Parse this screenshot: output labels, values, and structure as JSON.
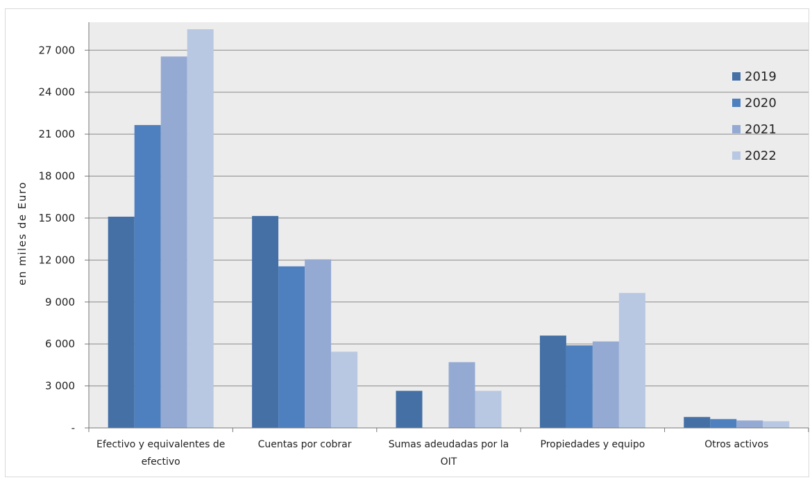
{
  "chart_data": {
    "type": "bar",
    "title": "",
    "xlabel": "",
    "ylabel": "en miles de Euro",
    "ylim": [
      0,
      29000
    ],
    "yticks": [
      {
        "value": 0,
        "label": "-"
      },
      {
        "value": 3000,
        "label": "3 000"
      },
      {
        "value": 6000,
        "label": "6 000"
      },
      {
        "value": 9000,
        "label": "9 000"
      },
      {
        "value": 12000,
        "label": "12 000"
      },
      {
        "value": 15000,
        "label": "15 000"
      },
      {
        "value": 18000,
        "label": "18 000"
      },
      {
        "value": 21000,
        "label": "21 000"
      },
      {
        "value": 24000,
        "label": "24 000"
      },
      {
        "value": 27000,
        "label": "27 000"
      }
    ],
    "categories": [
      [
        "Efectivo y equivalentes de",
        "efectivo"
      ],
      [
        "Cuentas por cobrar"
      ],
      [
        "Sumas adeudadas por la",
        "OIT"
      ],
      [
        "Propiedades y equipo"
      ],
      [
        "Otros activos"
      ]
    ],
    "series": [
      {
        "name": "2019",
        "color": "#4470a6",
        "values": [
          15100,
          15150,
          2650,
          6600,
          780
        ]
      },
      {
        "name": "2020",
        "color": "#4e80bf",
        "values": [
          21650,
          11550,
          0,
          5900,
          630
        ]
      },
      {
        "name": "2021",
        "color": "#95aad3",
        "values": [
          26550,
          12050,
          4700,
          6180,
          530
        ]
      },
      {
        "name": "2022",
        "color": "#b9c8e2",
        "values": [
          28500,
          5450,
          2650,
          9650,
          480
        ]
      }
    ],
    "grid": true,
    "legend_position": "top-right",
    "plot_background": "#ececec",
    "gridline_color": "#8a8a8a"
  }
}
